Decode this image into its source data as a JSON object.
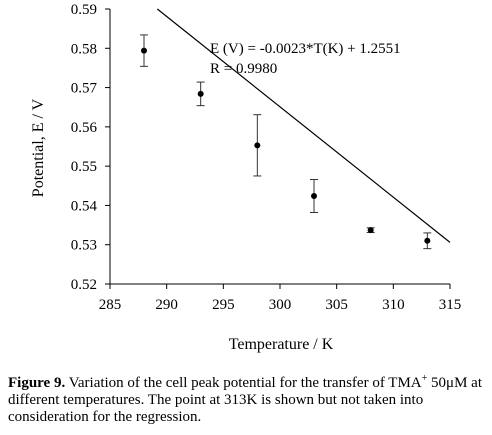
{
  "chart_data": {
    "type": "scatter",
    "xlabel": "Temperature / K",
    "ylabel": "Potential, E / V",
    "xlim": [
      285,
      315
    ],
    "ylim": [
      0.52,
      0.59
    ],
    "xticks": [
      "285",
      "290",
      "295",
      "300",
      "305",
      "310",
      "315"
    ],
    "yticks": [
      "0.52",
      "0.53",
      "0.54",
      "0.55",
      "0.56",
      "0.57",
      "0.58",
      "0.59"
    ],
    "points": [
      {
        "x": 288,
        "y": 0.5794,
        "err": 0.004
      },
      {
        "x": 293,
        "y": 0.5684,
        "err": 0.003
      },
      {
        "x": 298,
        "y": 0.5553,
        "err": 0.0078
      },
      {
        "x": 303,
        "y": 0.5424,
        "err": 0.0042
      },
      {
        "x": 308,
        "y": 0.5337,
        "err": 0.0006
      },
      {
        "x": 313,
        "y": 0.531,
        "err": 0.002
      }
    ],
    "regression": {
      "slope": -0.0023,
      "intercept": 1.2551
    },
    "annotations": {
      "equation": "E (V) = -0.0023*T(K) + 1.2551",
      "r": "R = 0.9980"
    },
    "grid": false,
    "legend": "none"
  },
  "caption": {
    "label": "Figure 9.",
    "text_1": " Variation of the cell peak potential for the transfer of TMA",
    "superscript": "+",
    "text_2": " 50μM at different temperatures. The point at 313K is shown but not taken into consideration for the regression."
  }
}
